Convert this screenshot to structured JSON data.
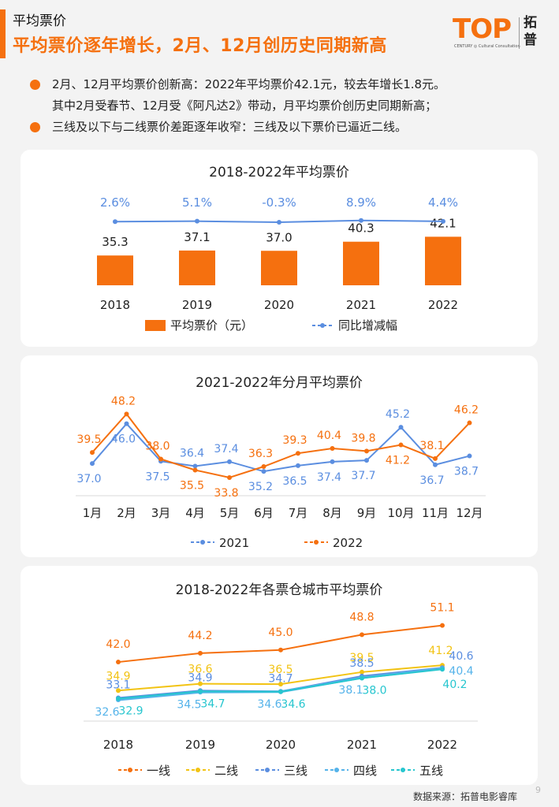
{
  "header": {
    "section": "平均票价",
    "headline": "平均票价逐年增长，2月、12月创历史同期新高",
    "logo_text": "TOP",
    "logo_sub": "CENTURY ◎ Cultural Consultation",
    "logo_cn": "拓普"
  },
  "bullets": [
    {
      "line1": "2月、12月平均票价创新高：2022年平均票价42.1元，较去年增长1.8元。",
      "line2": "其中2月受春节、12月受《阿凡达2》带动，月平均票价创历史同期新高；"
    },
    {
      "line1": "三线及以下与二线票价差距逐年收窄：三线及以下票价已逼近二线。",
      "line2": ""
    }
  ],
  "footer": "数据来源：拓普电影睿库",
  "page_number": "9",
  "colors": {
    "accent": "#f5700f",
    "blue": "#5b8ee0",
    "yellow": "#f2c314",
    "light_blue": "#55b3ea",
    "cyan": "#27c6cf"
  },
  "chart_data": [
    {
      "type": "bar",
      "title": "2018-2022年平均票价",
      "categories": [
        "2018",
        "2019",
        "2020",
        "2021",
        "2022"
      ],
      "series": [
        {
          "name": "平均票价（元）",
          "type": "bar",
          "values": [
            35.3,
            37.1,
            37.0,
            40.3,
            42.1
          ],
          "labels": [
            "35.3",
            "37.1",
            "37.0",
            "40.3",
            "42.1"
          ]
        },
        {
          "name": "同比增减幅",
          "type": "line",
          "values": [
            2.6,
            5.1,
            -0.3,
            8.9,
            4.4
          ],
          "labels": [
            "2.6%",
            "5.1%",
            "-0.3%",
            "8.9%",
            "4.4%"
          ]
        }
      ],
      "legend": "bottom"
    },
    {
      "type": "line",
      "title": "2021-2022年分月平均票价",
      "categories": [
        "1月",
        "2月",
        "3月",
        "4月",
        "5月",
        "6月",
        "7月",
        "8月",
        "9月",
        "10月",
        "11月",
        "12月"
      ],
      "series": [
        {
          "name": "2021",
          "values": [
            37.0,
            46.0,
            37.5,
            36.4,
            37.4,
            35.2,
            36.5,
            37.4,
            37.7,
            45.2,
            36.7,
            38.7
          ],
          "labels": [
            "37.0",
            "46.0",
            "37.5",
            "36.4",
            "37.4",
            "35.2",
            "36.5",
            "37.4",
            "37.7",
            "45.2",
            "36.7",
            "38.7"
          ]
        },
        {
          "name": "2022",
          "values": [
            39.5,
            48.2,
            38.0,
            35.5,
            33.8,
            36.3,
            39.3,
            40.4,
            39.8,
            41.2,
            38.1,
            46.2
          ],
          "labels": [
            "39.5",
            "48.2",
            "38.0",
            "35.5",
            "33.8",
            "36.3",
            "39.3",
            "40.4",
            "39.8",
            "41.2",
            "38.1",
            "46.2"
          ]
        }
      ],
      "legend": "bottom"
    },
    {
      "type": "line",
      "title": "2018-2022年各票仓城市平均票价",
      "categories": [
        "2018",
        "2019",
        "2020",
        "2021",
        "2022"
      ],
      "series": [
        {
          "name": "一线",
          "values": [
            42.0,
            44.2,
            45.0,
            48.8,
            51.1
          ],
          "labels": [
            "42.0",
            "44.2",
            "45.0",
            "48.8",
            "51.1"
          ]
        },
        {
          "name": "二线",
          "values": [
            34.9,
            36.6,
            36.5,
            39.5,
            41.2
          ],
          "labels": [
            "34.9",
            "36.6",
            "36.5",
            "39.5",
            "41.2"
          ]
        },
        {
          "name": "三线",
          "values": [
            33.1,
            34.9,
            34.7,
            38.5,
            40.6
          ],
          "labels": [
            "33.1",
            "34.9",
            "34.7",
            "38.5",
            "40.6"
          ]
        },
        {
          "name": "四线",
          "values": [
            32.6,
            34.5,
            34.6,
            38.1,
            40.4
          ],
          "labels": [
            "32.6",
            "34.5",
            "34.6",
            "38.1",
            "40.4"
          ]
        },
        {
          "name": "五线",
          "values": [
            32.9,
            34.7,
            34.6,
            38.0,
            40.2
          ],
          "labels": [
            "32.9",
            "34.7",
            "34.6",
            "38.0",
            "40.2"
          ]
        }
      ],
      "legend": "bottom"
    }
  ]
}
